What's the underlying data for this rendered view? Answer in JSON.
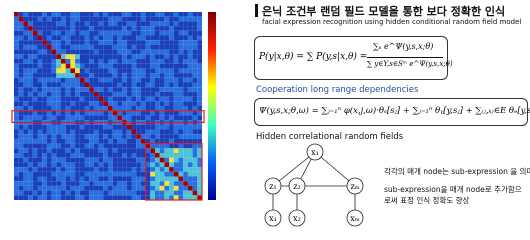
{
  "title": "은닉 조건부 랜덤 필드 모델을 통한 보다 정확한 인식",
  "subtitle": "facial expression recognition using hidden conditional random field model",
  "formula1": {
    "lhs": "P(y|x,θ) = ∑ P(y,s|x,θ) =",
    "numerator": "∑ₛ e^Ψ(y,s,x;θ)",
    "denominator": "∑ y∈Y,s∈Sᵐ e^Ψ(y,s,x;θ)"
  },
  "section1": "Cooperation long range dependencies",
  "formula2": "Ψ(y,s,x;θ,ω) = ∑ⱼ₌₁ⁿ φ(x,j,ω)·θₛ[sⱼ] + ∑ⱼ₌₁ⁿ θᵧ[y,sⱼ] + ∑₍ⱼ,ₖ₎∈E θₑ[y,sⱼ,sₖ]",
  "section2": "Hidden correlational random fields",
  "nodes": [
    "x₁",
    "z₁",
    "z₂",
    "zₘ",
    "x₁",
    "x₂",
    "xₘ"
  ],
  "note1": "각각의 매개 node는 sub-expression 을 의미.",
  "note2": "sub-expression을 매개 node로 추가함으로써 표정 인식 정확도 향상"
}
